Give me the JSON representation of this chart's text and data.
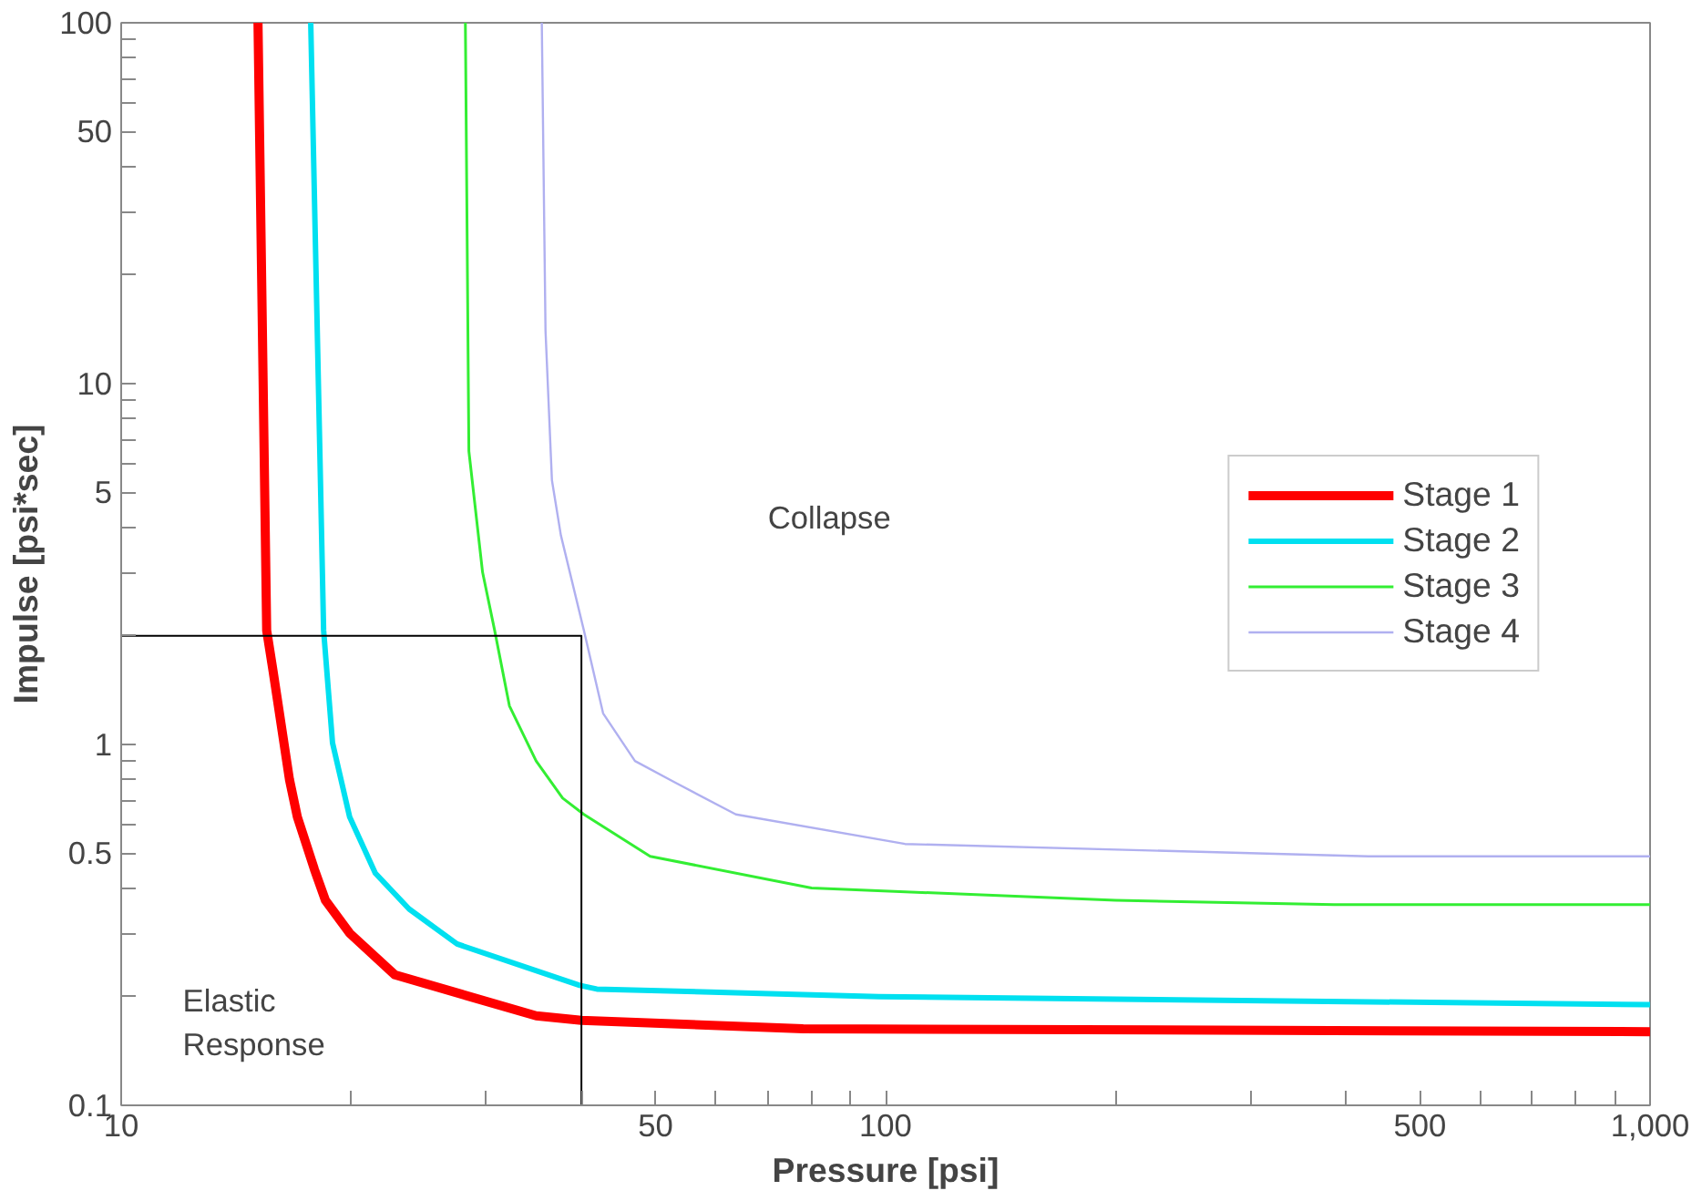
{
  "chart_data": {
    "type": "line",
    "xlabel": "Pressure [psi]",
    "ylabel": "Impulse [psi*sec]",
    "log": "xy",
    "grid": false,
    "legend": "right",
    "marker": "none",
    "line_style": "solid",
    "xlim": [
      10,
      1000
    ],
    "ylim": [
      0.1,
      100
    ],
    "xticks": [
      10,
      {
        "value": 20,
        "label": null
      },
      {
        "value": 30,
        "label": null
      },
      {
        "value": 40,
        "label": null
      },
      50,
      {
        "value": 60,
        "label": null
      },
      {
        "value": 70,
        "label": null
      },
      {
        "value": 80,
        "label": null
      },
      {
        "value": 90,
        "label": null
      },
      100,
      {
        "value": 200,
        "label": null
      },
      {
        "value": 300,
        "label": null
      },
      {
        "value": 400,
        "label": null
      },
      500,
      {
        "value": 600,
        "label": null
      },
      {
        "value": 700,
        "label": null
      },
      {
        "value": 800,
        "label": null
      },
      {
        "value": 900,
        "label": null
      },
      {
        "value": 1000,
        "label": "1,000"
      }
    ],
    "yticks": [
      0.1,
      {
        "value": 0.2,
        "label": null
      },
      {
        "value": 0.3,
        "label": null
      },
      {
        "value": 0.4,
        "label": null
      },
      0.5,
      {
        "value": 0.6,
        "label": null
      },
      {
        "value": 0.7,
        "label": null
      },
      {
        "value": 0.8,
        "label": null
      },
      {
        "value": 0.9,
        "label": null
      },
      1,
      {
        "value": 2,
        "label": null
      },
      {
        "value": 3,
        "label": null
      },
      {
        "value": 4,
        "label": null
      },
      5,
      {
        "value": 6,
        "label": null
      },
      {
        "value": 7,
        "label": null
      },
      {
        "value": 8,
        "label": null
      },
      {
        "value": 9,
        "label": null
      },
      10,
      {
        "value": 20,
        "label": null
      },
      {
        "value": 30,
        "label": null
      },
      {
        "value": 40,
        "label": null
      },
      50,
      {
        "value": 60,
        "label": null
      },
      {
        "value": 70,
        "label": null
      },
      {
        "value": 80,
        "label": null
      },
      {
        "value": 90,
        "label": null
      },
      100
    ],
    "annotations": [
      "Collapse",
      "Elastic\nResponse"
    ],
    "series": [
      {
        "name": "Stage 1",
        "color": "#ff0000",
        "x": [
          15.1,
          15.5,
          15.8,
          16.6,
          17.0,
          17.9,
          18.5,
          19.9,
          22.8,
          34.9,
          40,
          78,
          1000
        ],
        "values": [
          100,
          2.07,
          1.6,
          0.8,
          0.63,
          0.45,
          0.37,
          0.3,
          0.23,
          0.177,
          0.172,
          0.163,
          0.16
        ]
      },
      {
        "name": "Stage 2",
        "color": "#00e0f0",
        "x": [
          17.7,
          18.4,
          18.9,
          19.9,
          21.5,
          23.8,
          27.5,
          39.8,
          41.9,
          98,
          1000
        ],
        "values": [
          100,
          2.07,
          1.01,
          0.63,
          0.44,
          0.35,
          0.28,
          0.215,
          0.21,
          0.2,
          0.19
        ]
      },
      {
        "name": "Stage 3",
        "color": "#33ee33",
        "x": [
          28.2,
          28.5,
          29.7,
          30.8,
          32.2,
          34.9,
          37.8,
          40.3,
          49.2,
          80,
          200,
          386,
          1000
        ],
        "values": [
          100,
          6.5,
          3,
          2.07,
          1.28,
          0.9,
          0.71,
          0.64,
          0.49,
          0.4,
          0.37,
          0.36,
          0.36
        ]
      },
      {
        "name": "Stage 4",
        "color": "#b0b0f0",
        "x": [
          35.5,
          35.9,
          36.6,
          37.6,
          40.3,
          42.7,
          47,
          52.7,
          63.7,
          106,
          428,
          1000
        ],
        "values": [
          100,
          14,
          5.4,
          3.8,
          2.07,
          1.22,
          0.9,
          0.79,
          0.64,
          0.53,
          0.49,
          0.49
        ]
      },
      {
        "color": "#000000",
        "x": [
          10,
          40,
          40
        ],
        "values": [
          2,
          2,
          0.1
        ]
      }
    ]
  }
}
